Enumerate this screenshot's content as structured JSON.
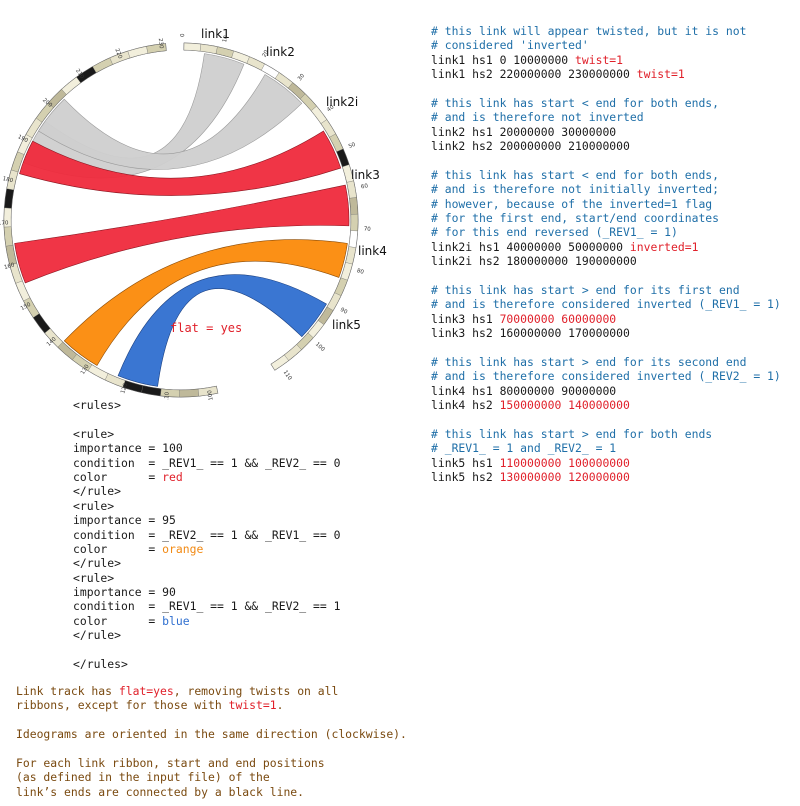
{
  "diagram": {
    "link_labels": [
      "link1",
      "link2",
      "link2i",
      "link3",
      "link4",
      "link5"
    ],
    "flat_label": "flat = yes",
    "ribbons": [
      {
        "name": "link1",
        "color": "#cfcfcf"
      },
      {
        "name": "link2",
        "color": "#cfcfcf"
      },
      {
        "name": "link2i",
        "color": "#ef2a3c"
      },
      {
        "name": "link3",
        "color": "#ef2a3c"
      },
      {
        "name": "link4",
        "color": "#fb8a0a"
      },
      {
        "name": "link5",
        "color": "#2f6fd0"
      }
    ],
    "ideogram_ticks_hs1": [
      "0",
      "10",
      "20",
      "30",
      "40",
      "50",
      "60",
      "70",
      "80",
      "90",
      "100",
      "110"
    ],
    "ideogram_ticks_hs2": [
      "100",
      "110",
      "120",
      "130",
      "140",
      "150",
      "160",
      "170",
      "180",
      "190",
      "200",
      "210",
      "220",
      "230"
    ]
  },
  "notes": [
    [
      {
        "t": "# this link will appear twisted, but it is not",
        "c": "comment"
      }
    ],
    [
      {
        "t": "# considered 'inverted'",
        "c": "comment"
      }
    ],
    [
      {
        "t": "link1 hs1 0 10000000 ",
        "c": "dark"
      },
      {
        "t": "twist=1",
        "c": "red"
      }
    ],
    [
      {
        "t": "link1 hs2 220000000 230000000 ",
        "c": "dark"
      },
      {
        "t": "twist=1",
        "c": "red"
      }
    ],
    [
      {
        "t": "",
        "c": "dark"
      }
    ],
    [
      {
        "t": "# this link has start < end for both ends,",
        "c": "comment"
      }
    ],
    [
      {
        "t": "# and is therefore not inverted",
        "c": "comment"
      }
    ],
    [
      {
        "t": "link2 hs1 20000000 30000000",
        "c": "dark"
      }
    ],
    [
      {
        "t": "link2 hs2 200000000 210000000",
        "c": "dark"
      }
    ],
    [
      {
        "t": "",
        "c": "dark"
      }
    ],
    [
      {
        "t": "# this link has start < end for both ends,",
        "c": "comment"
      }
    ],
    [
      {
        "t": "# and is therefore not initially inverted;",
        "c": "comment"
      }
    ],
    [
      {
        "t": "# however, because of the inverted=1 flag",
        "c": "comment"
      }
    ],
    [
      {
        "t": "# for the first end, start/end coordinates",
        "c": "comment"
      }
    ],
    [
      {
        "t": "# for this end reversed (_REV1_ = 1)",
        "c": "comment"
      }
    ],
    [
      {
        "t": "link2i hs1 40000000 50000000 ",
        "c": "dark"
      },
      {
        "t": "inverted=1",
        "c": "red"
      }
    ],
    [
      {
        "t": "link2i hs2 180000000 190000000",
        "c": "dark"
      }
    ],
    [
      {
        "t": "",
        "c": "dark"
      }
    ],
    [
      {
        "t": "# this link has start > end for its first end",
        "c": "comment"
      }
    ],
    [
      {
        "t": "# and is therefore considered inverted (_REV1_ = 1)",
        "c": "comment"
      }
    ],
    [
      {
        "t": "link3 hs1 ",
        "c": "dark"
      },
      {
        "t": "70000000 60000000",
        "c": "red"
      }
    ],
    [
      {
        "t": "link3 hs2 160000000 170000000",
        "c": "dark"
      }
    ],
    [
      {
        "t": "",
        "c": "dark"
      }
    ],
    [
      {
        "t": "# this link has start > end for its second end",
        "c": "comment"
      }
    ],
    [
      {
        "t": "# and is therefore considered inverted (_REV2_ = 1)",
        "c": "comment"
      }
    ],
    [
      {
        "t": "link4 hs1 80000000 90000000",
        "c": "dark"
      }
    ],
    [
      {
        "t": "link4 hs2 ",
        "c": "dark"
      },
      {
        "t": "150000000 140000000",
        "c": "red"
      }
    ],
    [
      {
        "t": "",
        "c": "dark"
      }
    ],
    [
      {
        "t": "# this link has start > end for both ends",
        "c": "comment"
      }
    ],
    [
      {
        "t": "# _REV1_ = 1 and _REV2_ = 1",
        "c": "comment"
      }
    ],
    [
      {
        "t": "link5 hs1 ",
        "c": "dark"
      },
      {
        "t": "110000000 100000000",
        "c": "red"
      }
    ],
    [
      {
        "t": "link5 hs2 ",
        "c": "dark"
      },
      {
        "t": "130000000 120000000",
        "c": "red"
      }
    ]
  ],
  "rules": [
    [
      {
        "t": "<rules>",
        "c": "dark"
      }
    ],
    [
      {
        "t": "",
        "c": "dark"
      }
    ],
    [
      {
        "t": "<rule>",
        "c": "dark"
      }
    ],
    [
      {
        "t": "importance = 100",
        "c": "dark"
      }
    ],
    [
      {
        "t": "condition  = _REV1_ == 1 && _REV2_ == 0",
        "c": "dark"
      }
    ],
    [
      {
        "t": "color      = ",
        "c": "dark"
      },
      {
        "t": "red",
        "c": "red"
      }
    ],
    [
      {
        "t": "</rule>",
        "c": "dark"
      }
    ],
    [
      {
        "t": "<rule>",
        "c": "dark"
      }
    ],
    [
      {
        "t": "importance = 95",
        "c": "dark"
      }
    ],
    [
      {
        "t": "condition  = _REV2_ == 1 && _REV1_ == 0",
        "c": "dark"
      }
    ],
    [
      {
        "t": "color      = ",
        "c": "dark"
      },
      {
        "t": "orange",
        "c": "orange"
      }
    ],
    [
      {
        "t": "</rule>",
        "c": "dark"
      }
    ],
    [
      {
        "t": "<rule>",
        "c": "dark"
      }
    ],
    [
      {
        "t": "importance = 90",
        "c": "dark"
      }
    ],
    [
      {
        "t": "condition  = _REV1_ == 1 && _REV2_ == 1",
        "c": "dark"
      }
    ],
    [
      {
        "t": "color      = ",
        "c": "dark"
      },
      {
        "t": "blue",
        "c": "blue"
      }
    ],
    [
      {
        "t": "</rule>",
        "c": "dark"
      }
    ],
    [
      {
        "t": "",
        "c": "dark"
      }
    ],
    [
      {
        "t": "</rules>",
        "c": "dark"
      }
    ]
  ],
  "caption": [
    [
      {
        "t": "Link track has ",
        "c": "brown"
      },
      {
        "t": "flat=yes",
        "c": "red"
      },
      {
        "t": ", removing twists on all",
        "c": "brown"
      }
    ],
    [
      {
        "t": "ribbons, except for those with ",
        "c": "brown"
      },
      {
        "t": "twist=1",
        "c": "red"
      },
      {
        "t": ".",
        "c": "brown"
      }
    ],
    [
      {
        "t": "",
        "c": "brown"
      }
    ],
    [
      {
        "t": "Ideograms are oriented in the same direction (clockwise).",
        "c": "brown"
      }
    ],
    [
      {
        "t": "",
        "c": "brown"
      }
    ],
    [
      {
        "t": "For each link ribbon, start and end positions",
        "c": "brown"
      }
    ],
    [
      {
        "t": "(as defined in the input file) of the",
        "c": "brown"
      }
    ],
    [
      {
        "t": "link’s ends are connected by a black line.",
        "c": "brown"
      }
    ]
  ]
}
